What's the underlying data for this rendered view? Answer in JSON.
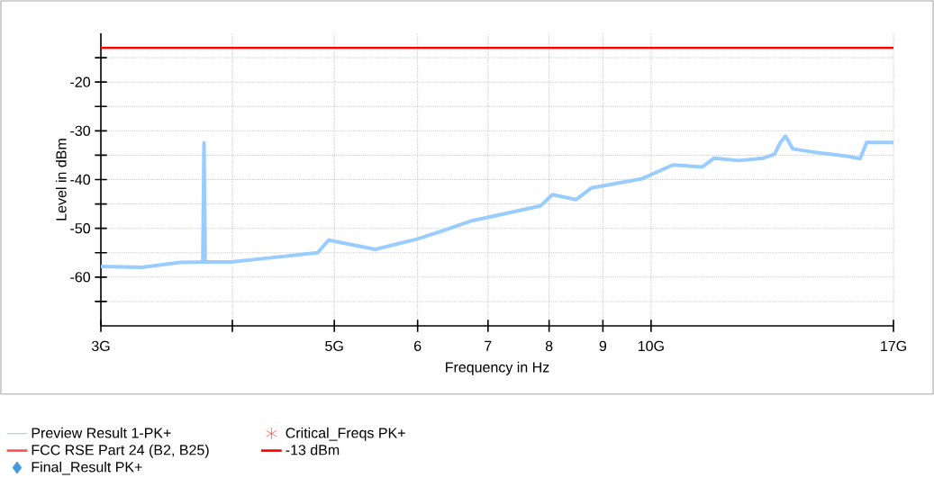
{
  "chart_data": {
    "type": "line",
    "xlabel": "Frequency in Hz",
    "ylabel": "Level in dBm",
    "log": "x",
    "grid": true,
    "legend": "bottom",
    "xlim": [
      3,
      17
    ],
    "ylim": [
      -70,
      -10
    ],
    "xticks": [
      {
        "value": 3,
        "label": "3G"
      },
      {
        "value": 4,
        "label": null
      },
      {
        "value": 5,
        "label": "5G"
      },
      6,
      7,
      8,
      9,
      {
        "value": 10,
        "label": "10G"
      },
      {
        "value": 17,
        "label": "17G"
      }
    ],
    "yticks": [
      {
        "value": -65,
        "label": null
      },
      -60,
      {
        "value": -55,
        "label": null
      },
      -50,
      {
        "value": -45,
        "label": null
      },
      -40,
      {
        "value": -35,
        "label": null
      },
      -30,
      {
        "value": -25,
        "label": null
      },
      -20,
      {
        "value": -15,
        "label": null
      }
    ],
    "series": [
      {
        "name": "Preview Result 1-PK+",
        "color": "#99ccff",
        "x": [
          3,
          3.28,
          3.57,
          3.75,
          3.76,
          3.77,
          3.99,
          4.41,
          4.82,
          4.94,
          5.47,
          5.99,
          6.36,
          6.74,
          6.98,
          7.85,
          8.06,
          8.49,
          8.78,
          9.81,
          10.49,
          11.19,
          11.48,
          12.12,
          12.78,
          13.1,
          13.27,
          13.42,
          13.64,
          14.2,
          15.35,
          15.8,
          16.03,
          17
        ],
        "values": [
          -57.8,
          -58,
          -57,
          -56.9,
          -32.5,
          -56.9,
          -56.9,
          -55.9,
          -55,
          -52.4,
          -54.3,
          -52.2,
          -50.4,
          -48.5,
          -47.8,
          -45.4,
          -43.1,
          -44.1,
          -41.7,
          -39.8,
          -37,
          -37.4,
          -35.6,
          -36.1,
          -35.6,
          -34.8,
          -32.4,
          -31.1,
          -33.7,
          -34.3,
          -35.2,
          -35.7,
          -32.4,
          -32.4
        ]
      },
      {
        "name": "Critical_Freqs PK+",
        "type": "scatter",
        "marker": "star",
        "color": "#ff0000"
      },
      {
        "name": "FCC RSE Part 24 (B2, B25)",
        "type": "line",
        "color": "#ff5050"
      },
      {
        "name": "-13 dBm",
        "type": "line",
        "color": "#ff0000",
        "x": [
          3,
          17
        ],
        "values": [
          -13,
          -13
        ]
      },
      {
        "name": "Final_Result PK+",
        "type": "scatter",
        "marker": "diamond",
        "color": "#4499dd"
      }
    ]
  }
}
